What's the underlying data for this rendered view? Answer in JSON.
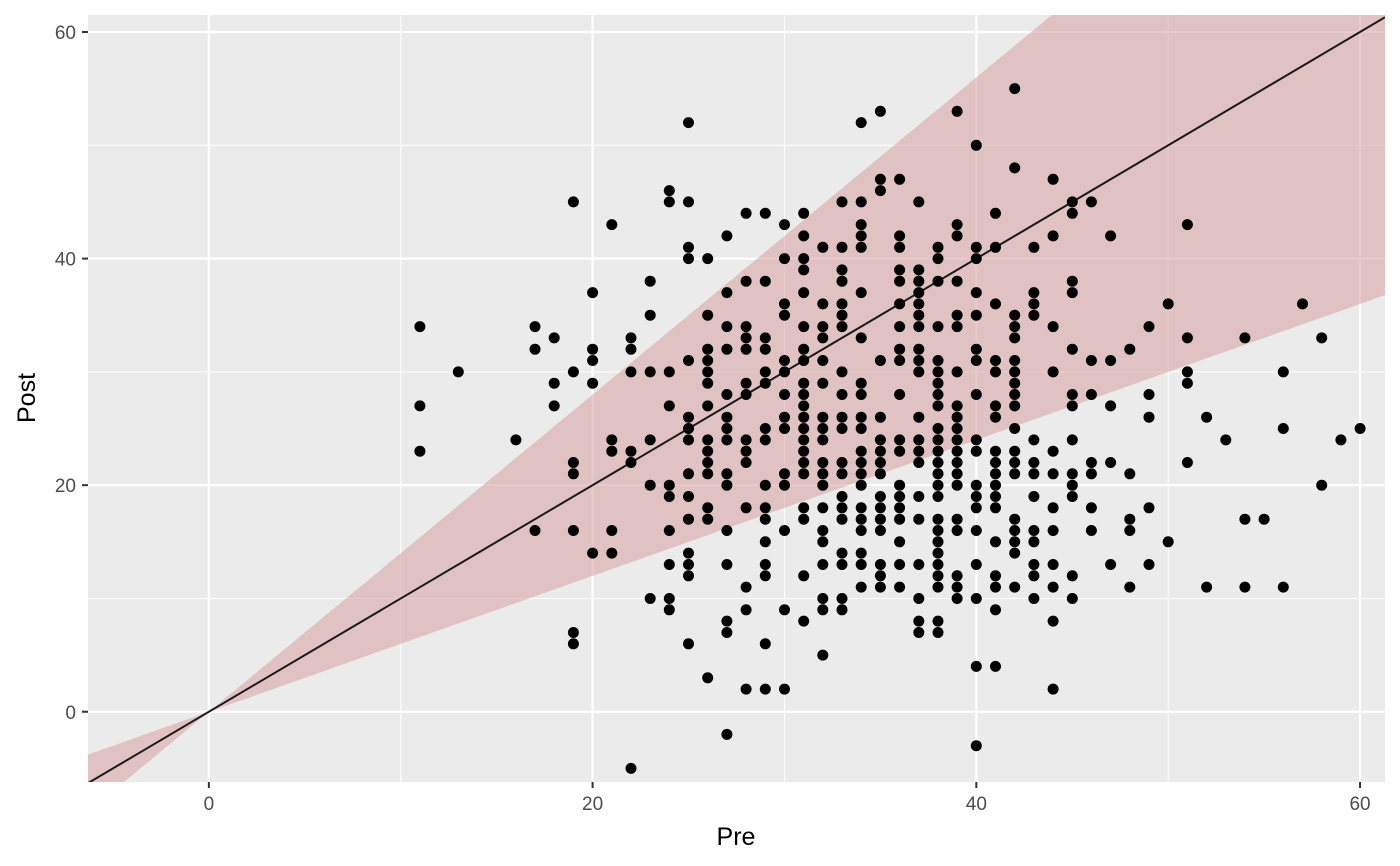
{
  "chart_data": {
    "type": "scatter",
    "title": "",
    "xlabel": "Pre",
    "ylabel": "Post",
    "xlim": [
      -6.3,
      61.3
    ],
    "ylim": [
      -6.2,
      61.5
    ],
    "x_ticks": [
      0,
      20,
      40,
      60
    ],
    "y_ticks": [
      0,
      20,
      40,
      60
    ],
    "x_tick_labels": [
      "0",
      "20",
      "40",
      "60"
    ],
    "y_tick_labels": [
      "0",
      "20",
      "40",
      "60"
    ],
    "grid": true,
    "reference_line": {
      "slope": 1,
      "intercept": 0
    },
    "band": {
      "upper_slope": 1.4,
      "lower_slope": 0.6
    },
    "colors": {
      "panel": "#ebebeb",
      "grid": "#ffffff",
      "band": "#d9a7a9",
      "points": "#000000",
      "line": "#1a1a1a"
    },
    "points": [
      [
        11,
        34
      ],
      [
        11,
        27
      ],
      [
        11,
        23
      ],
      [
        13,
        30
      ],
      [
        16,
        24
      ],
      [
        17,
        34
      ],
      [
        17,
        32
      ],
      [
        17,
        16
      ],
      [
        18,
        33
      ],
      [
        18,
        29
      ],
      [
        18,
        27
      ],
      [
        19,
        45
      ],
      [
        19,
        30
      ],
      [
        19,
        22
      ],
      [
        19,
        21
      ],
      [
        19,
        16
      ],
      [
        19,
        7
      ],
      [
        19,
        6
      ],
      [
        20,
        37
      ],
      [
        20,
        32
      ],
      [
        20,
        31
      ],
      [
        20,
        29
      ],
      [
        20,
        14
      ],
      [
        21,
        43
      ],
      [
        21,
        24
      ],
      [
        21,
        23
      ],
      [
        21,
        16
      ],
      [
        21,
        14
      ],
      [
        22,
        33
      ],
      [
        22,
        32
      ],
      [
        22,
        30
      ],
      [
        22,
        23
      ],
      [
        22,
        22
      ],
      [
        22,
        -5
      ],
      [
        23,
        38
      ],
      [
        23,
        35
      ],
      [
        23,
        30
      ],
      [
        23,
        24
      ],
      [
        23,
        20
      ],
      [
        23,
        10
      ],
      [
        24,
        46
      ],
      [
        24,
        45
      ],
      [
        24,
        30
      ],
      [
        24,
        27
      ],
      [
        24,
        20
      ],
      [
        24,
        19
      ],
      [
        24,
        16
      ],
      [
        24,
        13
      ],
      [
        24,
        10
      ],
      [
        24,
        9
      ],
      [
        25,
        52
      ],
      [
        25,
        45
      ],
      [
        25,
        41
      ],
      [
        25,
        40
      ],
      [
        25,
        31
      ],
      [
        25,
        26
      ],
      [
        25,
        25
      ],
      [
        25,
        24
      ],
      [
        25,
        21
      ],
      [
        25,
        19
      ],
      [
        25,
        17
      ],
      [
        25,
        14
      ],
      [
        25,
        13
      ],
      [
        25,
        12
      ],
      [
        25,
        6
      ],
      [
        26,
        40
      ],
      [
        26,
        35
      ],
      [
        26,
        32
      ],
      [
        26,
        31
      ],
      [
        26,
        30
      ],
      [
        26,
        29
      ],
      [
        26,
        27
      ],
      [
        26,
        24
      ],
      [
        26,
        23
      ],
      [
        26,
        22
      ],
      [
        26,
        21
      ],
      [
        26,
        18
      ],
      [
        26,
        17
      ],
      [
        26,
        3
      ],
      [
        27,
        42
      ],
      [
        27,
        37
      ],
      [
        27,
        34
      ],
      [
        27,
        32
      ],
      [
        27,
        28
      ],
      [
        27,
        26
      ],
      [
        27,
        25
      ],
      [
        27,
        24
      ],
      [
        27,
        21
      ],
      [
        27,
        20
      ],
      [
        27,
        16
      ],
      [
        27,
        13
      ],
      [
        27,
        8
      ],
      [
        27,
        7
      ],
      [
        27,
        -2
      ],
      [
        28,
        44
      ],
      [
        28,
        38
      ],
      [
        28,
        34
      ],
      [
        28,
        33
      ],
      [
        28,
        32
      ],
      [
        28,
        29
      ],
      [
        28,
        28
      ],
      [
        28,
        24
      ],
      [
        28,
        23
      ],
      [
        28,
        22
      ],
      [
        28,
        18
      ],
      [
        28,
        11
      ],
      [
        28,
        9
      ],
      [
        28,
        2
      ],
      [
        29,
        44
      ],
      [
        29,
        38
      ],
      [
        29,
        33
      ],
      [
        29,
        32
      ],
      [
        29,
        30
      ],
      [
        29,
        29
      ],
      [
        29,
        25
      ],
      [
        29,
        24
      ],
      [
        29,
        20
      ],
      [
        29,
        18
      ],
      [
        29,
        17
      ],
      [
        29,
        15
      ],
      [
        29,
        13
      ],
      [
        29,
        12
      ],
      [
        29,
        6
      ],
      [
        29,
        2
      ],
      [
        30,
        43
      ],
      [
        30,
        40
      ],
      [
        30,
        36
      ],
      [
        30,
        35
      ],
      [
        30,
        31
      ],
      [
        30,
        30
      ],
      [
        30,
        28
      ],
      [
        30,
        26
      ],
      [
        30,
        25
      ],
      [
        30,
        21
      ],
      [
        30,
        20
      ],
      [
        30,
        16
      ],
      [
        30,
        9
      ],
      [
        30,
        2
      ],
      [
        31,
        44
      ],
      [
        31,
        42
      ],
      [
        31,
        40
      ],
      [
        31,
        39
      ],
      [
        31,
        37
      ],
      [
        31,
        34
      ],
      [
        31,
        32
      ],
      [
        31,
        31
      ],
      [
        31,
        29
      ],
      [
        31,
        28
      ],
      [
        31,
        27
      ],
      [
        31,
        26
      ],
      [
        31,
        25
      ],
      [
        31,
        24
      ],
      [
        31,
        23
      ],
      [
        31,
        22
      ],
      [
        31,
        21
      ],
      [
        31,
        18
      ],
      [
        31,
        17
      ],
      [
        31,
        12
      ],
      [
        31,
        8
      ],
      [
        32,
        41
      ],
      [
        32,
        36
      ],
      [
        32,
        34
      ],
      [
        32,
        33
      ],
      [
        32,
        31
      ],
      [
        32,
        29
      ],
      [
        32,
        26
      ],
      [
        32,
        25
      ],
      [
        32,
        24
      ],
      [
        32,
        22
      ],
      [
        32,
        21
      ],
      [
        32,
        20
      ],
      [
        32,
        18
      ],
      [
        32,
        16
      ],
      [
        32,
        15
      ],
      [
        32,
        13
      ],
      [
        32,
        10
      ],
      [
        32,
        9
      ],
      [
        32,
        5
      ],
      [
        33,
        45
      ],
      [
        33,
        41
      ],
      [
        33,
        39
      ],
      [
        33,
        38
      ],
      [
        33,
        36
      ],
      [
        33,
        35
      ],
      [
        33,
        34
      ],
      [
        33,
        30
      ],
      [
        33,
        28
      ],
      [
        33,
        26
      ],
      [
        33,
        25
      ],
      [
        33,
        22
      ],
      [
        33,
        21
      ],
      [
        33,
        19
      ],
      [
        33,
        18
      ],
      [
        33,
        17
      ],
      [
        33,
        14
      ],
      [
        33,
        13
      ],
      [
        33,
        10
      ],
      [
        33,
        9
      ],
      [
        34,
        52
      ],
      [
        34,
        45
      ],
      [
        34,
        43
      ],
      [
        34,
        42
      ],
      [
        34,
        41
      ],
      [
        34,
        37
      ],
      [
        34,
        33
      ],
      [
        34,
        29
      ],
      [
        34,
        28
      ],
      [
        34,
        26
      ],
      [
        34,
        25
      ],
      [
        34,
        23
      ],
      [
        34,
        22
      ],
      [
        34,
        21
      ],
      [
        34,
        20
      ],
      [
        34,
        18
      ],
      [
        34,
        17
      ],
      [
        34,
        16
      ],
      [
        34,
        14
      ],
      [
        34,
        13
      ],
      [
        34,
        11
      ],
      [
        35,
        53
      ],
      [
        35,
        47
      ],
      [
        35,
        46
      ],
      [
        35,
        31
      ],
      [
        35,
        26
      ],
      [
        35,
        24
      ],
      [
        35,
        23
      ],
      [
        35,
        22
      ],
      [
        35,
        21
      ],
      [
        35,
        19
      ],
      [
        35,
        18
      ],
      [
        35,
        17
      ],
      [
        35,
        16
      ],
      [
        35,
        13
      ],
      [
        35,
        12
      ],
      [
        35,
        11
      ],
      [
        36,
        47
      ],
      [
        36,
        42
      ],
      [
        36,
        41
      ],
      [
        36,
        39
      ],
      [
        36,
        38
      ],
      [
        36,
        36
      ],
      [
        36,
        34
      ],
      [
        36,
        32
      ],
      [
        36,
        31
      ],
      [
        36,
        28
      ],
      [
        36,
        24
      ],
      [
        36,
        23
      ],
      [
        36,
        20
      ],
      [
        36,
        19
      ],
      [
        36,
        18
      ],
      [
        36,
        17
      ],
      [
        36,
        15
      ],
      [
        36,
        13
      ],
      [
        36,
        11
      ],
      [
        37,
        45
      ],
      [
        37,
        39
      ],
      [
        37,
        38
      ],
      [
        37,
        37
      ],
      [
        37,
        36
      ],
      [
        37,
        35
      ],
      [
        37,
        34
      ],
      [
        37,
        32
      ],
      [
        37,
        31
      ],
      [
        37,
        30
      ],
      [
        37,
        26
      ],
      [
        37,
        24
      ],
      [
        37,
        23
      ],
      [
        37,
        22
      ],
      [
        37,
        19
      ],
      [
        37,
        17
      ],
      [
        37,
        13
      ],
      [
        37,
        10
      ],
      [
        37,
        8
      ],
      [
        37,
        7
      ],
      [
        38,
        41
      ],
      [
        38,
        40
      ],
      [
        38,
        38
      ],
      [
        38,
        34
      ],
      [
        38,
        31
      ],
      [
        38,
        30
      ],
      [
        38,
        29
      ],
      [
        38,
        28
      ],
      [
        38,
        27
      ],
      [
        38,
        25
      ],
      [
        38,
        24
      ],
      [
        38,
        23
      ],
      [
        38,
        22
      ],
      [
        38,
        21
      ],
      [
        38,
        20
      ],
      [
        38,
        19
      ],
      [
        38,
        17
      ],
      [
        38,
        16
      ],
      [
        38,
        15
      ],
      [
        38,
        14
      ],
      [
        38,
        13
      ],
      [
        38,
        12
      ],
      [
        38,
        11
      ],
      [
        38,
        8
      ],
      [
        38,
        7
      ],
      [
        39,
        53
      ],
      [
        39,
        43
      ],
      [
        39,
        42
      ],
      [
        39,
        38
      ],
      [
        39,
        35
      ],
      [
        39,
        34
      ],
      [
        39,
        30
      ],
      [
        39,
        27
      ],
      [
        39,
        26
      ],
      [
        39,
        25
      ],
      [
        39,
        24
      ],
      [
        39,
        23
      ],
      [
        39,
        22
      ],
      [
        39,
        21
      ],
      [
        39,
        20
      ],
      [
        39,
        17
      ],
      [
        39,
        16
      ],
      [
        39,
        12
      ],
      [
        39,
        11
      ],
      [
        39,
        10
      ],
      [
        40,
        50
      ],
      [
        40,
        41
      ],
      [
        40,
        40
      ],
      [
        40,
        37
      ],
      [
        40,
        35
      ],
      [
        40,
        32
      ],
      [
        40,
        31
      ],
      [
        40,
        28
      ],
      [
        40,
        24
      ],
      [
        40,
        23
      ],
      [
        40,
        20
      ],
      [
        40,
        19
      ],
      [
        40,
        18
      ],
      [
        40,
        16
      ],
      [
        40,
        13
      ],
      [
        40,
        10
      ],
      [
        40,
        4
      ],
      [
        40,
        -3
      ],
      [
        41,
        44
      ],
      [
        41,
        41
      ],
      [
        41,
        36
      ],
      [
        41,
        31
      ],
      [
        41,
        30
      ],
      [
        41,
        27
      ],
      [
        41,
        26
      ],
      [
        41,
        23
      ],
      [
        41,
        22
      ],
      [
        41,
        21
      ],
      [
        41,
        20
      ],
      [
        41,
        19
      ],
      [
        41,
        18
      ],
      [
        41,
        15
      ],
      [
        41,
        12
      ],
      [
        41,
        11
      ],
      [
        41,
        9
      ],
      [
        41,
        4
      ],
      [
        42,
        55
      ],
      [
        42,
        48
      ],
      [
        42,
        35
      ],
      [
        42,
        34
      ],
      [
        42,
        33
      ],
      [
        42,
        31
      ],
      [
        42,
        30
      ],
      [
        42,
        29
      ],
      [
        42,
        28
      ],
      [
        42,
        27
      ],
      [
        42,
        25
      ],
      [
        42,
        23
      ],
      [
        42,
        22
      ],
      [
        42,
        21
      ],
      [
        42,
        17
      ],
      [
        42,
        16
      ],
      [
        42,
        15
      ],
      [
        42,
        14
      ],
      [
        42,
        11
      ],
      [
        43,
        41
      ],
      [
        43,
        37
      ],
      [
        43,
        36
      ],
      [
        43,
        35
      ],
      [
        43,
        24
      ],
      [
        43,
        22
      ],
      [
        43,
        21
      ],
      [
        43,
        19
      ],
      [
        43,
        16
      ],
      [
        43,
        15
      ],
      [
        43,
        13
      ],
      [
        43,
        12
      ],
      [
        43,
        10
      ],
      [
        44,
        47
      ],
      [
        44,
        42
      ],
      [
        44,
        34
      ],
      [
        44,
        30
      ],
      [
        44,
        23
      ],
      [
        44,
        21
      ],
      [
        44,
        18
      ],
      [
        44,
        16
      ],
      [
        44,
        13
      ],
      [
        44,
        11
      ],
      [
        44,
        8
      ],
      [
        44,
        2
      ],
      [
        45,
        45
      ],
      [
        45,
        44
      ],
      [
        45,
        38
      ],
      [
        45,
        37
      ],
      [
        45,
        32
      ],
      [
        45,
        28
      ],
      [
        45,
        27
      ],
      [
        45,
        24
      ],
      [
        45,
        21
      ],
      [
        45,
        20
      ],
      [
        45,
        19
      ],
      [
        45,
        12
      ],
      [
        45,
        10
      ],
      [
        46,
        45
      ],
      [
        46,
        31
      ],
      [
        46,
        28
      ],
      [
        46,
        22
      ],
      [
        46,
        21
      ],
      [
        46,
        18
      ],
      [
        46,
        16
      ],
      [
        47,
        42
      ],
      [
        47,
        31
      ],
      [
        47,
        27
      ],
      [
        47,
        22
      ],
      [
        47,
        13
      ],
      [
        48,
        32
      ],
      [
        48,
        21
      ],
      [
        48,
        17
      ],
      [
        48,
        16
      ],
      [
        48,
        11
      ],
      [
        49,
        34
      ],
      [
        49,
        28
      ],
      [
        49,
        26
      ],
      [
        49,
        18
      ],
      [
        49,
        13
      ],
      [
        50,
        36
      ],
      [
        50,
        15
      ],
      [
        51,
        43
      ],
      [
        51,
        33
      ],
      [
        51,
        30
      ],
      [
        51,
        29
      ],
      [
        51,
        22
      ],
      [
        52,
        26
      ],
      [
        52,
        11
      ],
      [
        53,
        24
      ],
      [
        54,
        33
      ],
      [
        54,
        17
      ],
      [
        54,
        11
      ],
      [
        55,
        17
      ],
      [
        56,
        30
      ],
      [
        56,
        25
      ],
      [
        56,
        11
      ],
      [
        57,
        36
      ],
      [
        58,
        33
      ],
      [
        58,
        20
      ],
      [
        59,
        24
      ],
      [
        60,
        25
      ]
    ]
  }
}
